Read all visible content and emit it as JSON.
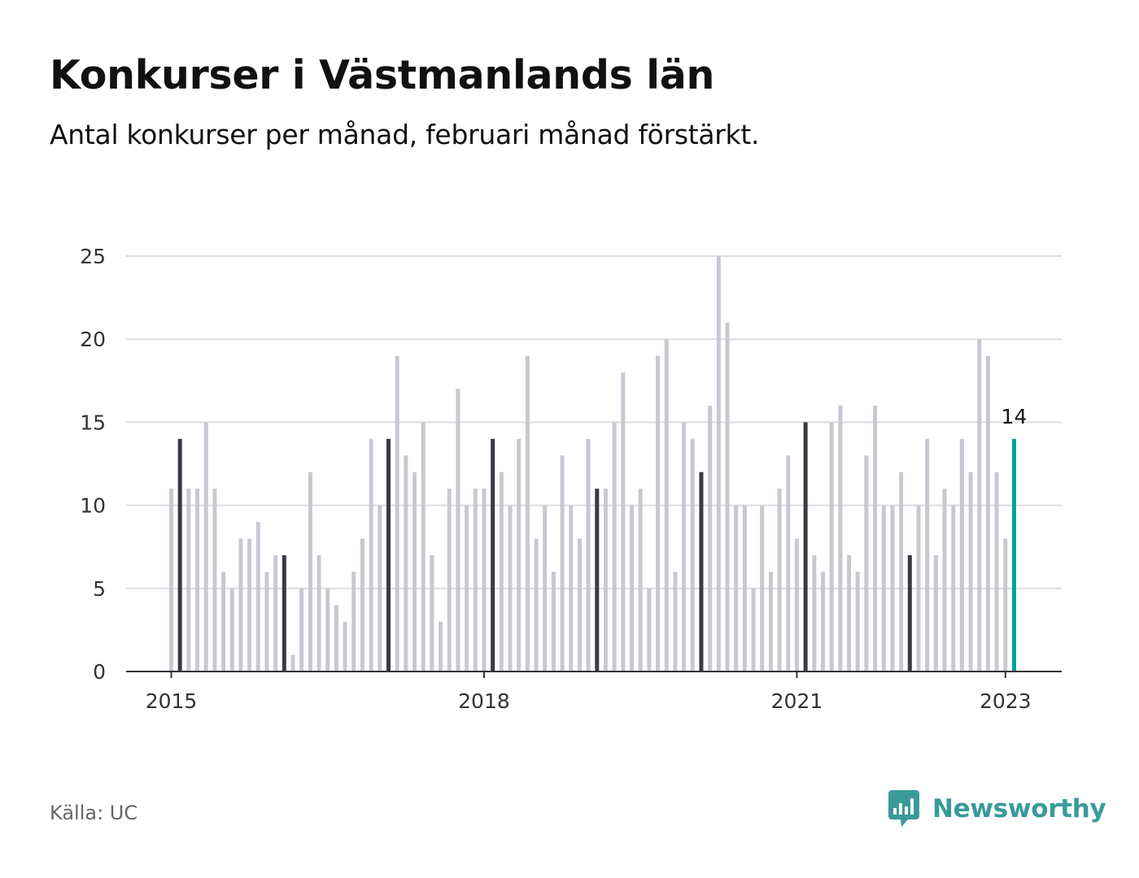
{
  "header": {
    "title": "Konkurser i Västmanlands län",
    "subtitle": "Antal konkurser per månad, februari månad förstärkt."
  },
  "footer": {
    "source": "Källa: UC",
    "brand": "Newsworthy"
  },
  "colors": {
    "bar": "#c8c8d2",
    "bar_highlight": "#3a3a46",
    "bar_latest": "#00a09a",
    "grid": "#dcdcdc",
    "axis": "#333333",
    "brand": "#3a9a9a"
  },
  "icons": {
    "brand_logo": "newsworthy-logo-icon"
  },
  "chart_data": {
    "type": "bar",
    "x_unit": "month",
    "start": "2015-01",
    "end": "2023-02",
    "ylim": [
      0,
      25
    ],
    "yticks": [
      0,
      5,
      10,
      15,
      20,
      25
    ],
    "xticks": [
      {
        "label": "2015",
        "month": "2015-01"
      },
      {
        "label": "2018",
        "month": "2018-01"
      },
      {
        "label": "2021",
        "month": "2021-01"
      },
      {
        "label": "2023",
        "month": "2023-01"
      }
    ],
    "grid": true,
    "highlight": "February",
    "values": [
      11,
      14,
      11,
      11,
      15,
      11,
      6,
      5,
      8,
      8,
      9,
      6,
      7,
      7,
      1,
      5,
      12,
      7,
      5,
      4,
      3,
      6,
      8,
      14,
      10,
      14,
      19,
      13,
      12,
      15,
      7,
      3,
      11,
      17,
      10,
      11,
      11,
      14,
      12,
      10,
      14,
      19,
      8,
      10,
      6,
      13,
      10,
      8,
      14,
      11,
      11,
      15,
      18,
      10,
      11,
      5,
      19,
      20,
      6,
      15,
      14,
      12,
      16,
      25,
      21,
      10,
      10,
      5,
      10,
      6,
      11,
      13,
      8,
      15,
      7,
      6,
      15,
      16,
      7,
      6,
      13,
      16,
      10,
      10,
      12,
      7,
      10,
      14,
      7,
      11,
      10,
      14,
      12,
      20,
      19,
      12,
      8,
      14
    ],
    "annotation": {
      "month": "2023-02",
      "label": "14"
    }
  }
}
